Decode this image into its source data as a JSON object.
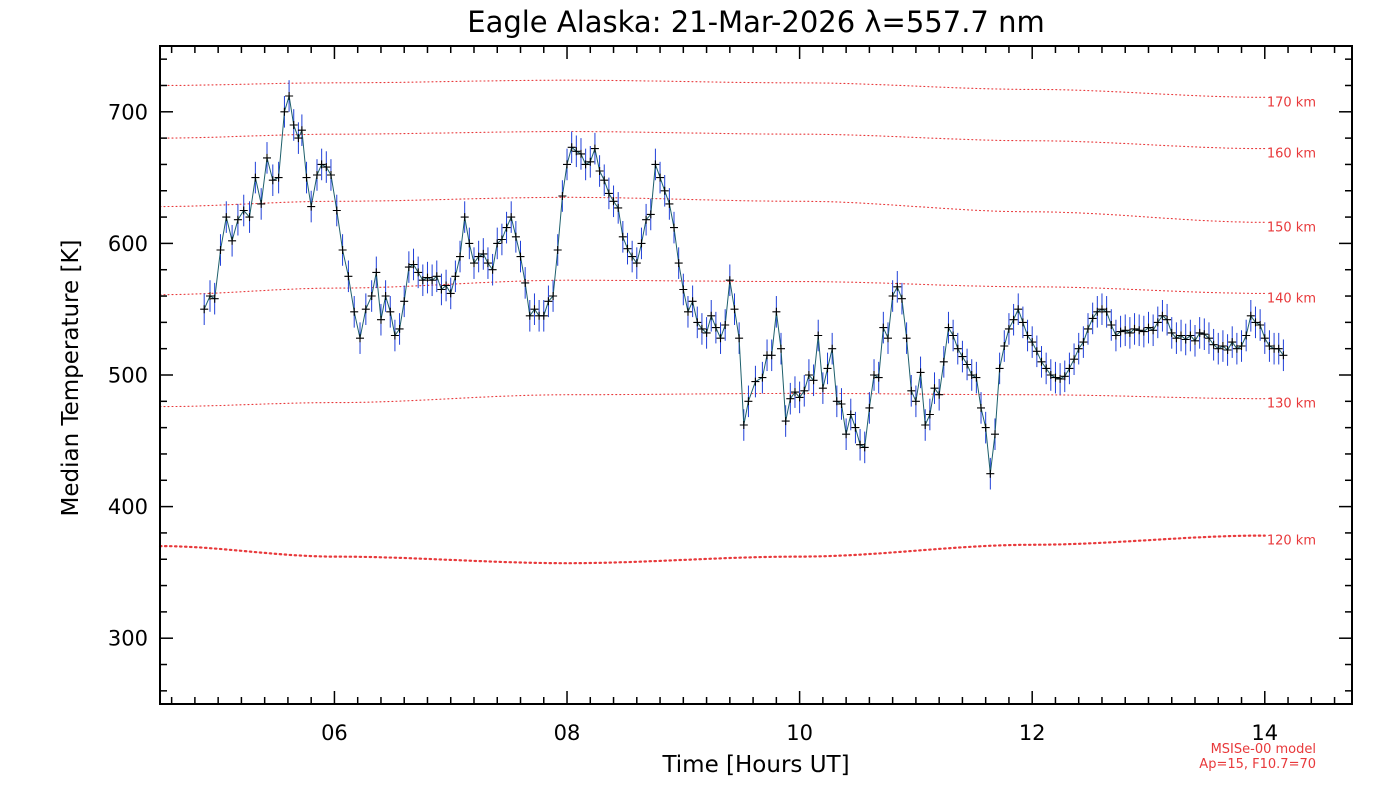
{
  "chart_data": {
    "type": "line",
    "title": "Eagle Alaska: 21-Mar-2026 λ=557.7 nm",
    "xlabel": "Time [Hours UT]",
    "ylabel": "Median Temperature [K]",
    "xlim": [
      4.5,
      14.75
    ],
    "ylim": [
      250,
      750
    ],
    "x_tick_values": [
      6,
      8,
      10,
      12,
      14
    ],
    "x_tick_labels": [
      "06",
      "08",
      "10",
      "12",
      "14"
    ],
    "y_tick_values": [
      300,
      400,
      500,
      600,
      700
    ],
    "y_tick_labels": [
      "300",
      "400",
      "500",
      "600",
      "700"
    ],
    "grid": false,
    "series": [
      {
        "color": "#1f3fd8",
        "marker": "+",
        "error_bar_k": 12,
        "points": [
          [
            4.88,
            550
          ],
          [
            4.93,
            560
          ],
          [
            4.97,
            558
          ],
          [
            5.02,
            595
          ],
          [
            5.07,
            620
          ],
          [
            5.12,
            602
          ],
          [
            5.17,
            618
          ],
          [
            5.22,
            625
          ],
          [
            5.27,
            620
          ],
          [
            5.32,
            650
          ],
          [
            5.37,
            630
          ],
          [
            5.42,
            665
          ],
          [
            5.47,
            648
          ],
          [
            5.52,
            650
          ],
          [
            5.57,
            700
          ],
          [
            5.61,
            712
          ],
          [
            5.65,
            690
          ],
          [
            5.69,
            680
          ],
          [
            5.72,
            686
          ],
          [
            5.76,
            650
          ],
          [
            5.8,
            628
          ],
          [
            5.85,
            652
          ],
          [
            5.89,
            660
          ],
          [
            5.93,
            658
          ],
          [
            5.97,
            652
          ],
          [
            6.02,
            625
          ],
          [
            6.07,
            595
          ],
          [
            6.12,
            575
          ],
          [
            6.17,
            548
          ],
          [
            6.22,
            528
          ],
          [
            6.27,
            550
          ],
          [
            6.32,
            560
          ],
          [
            6.36,
            578
          ],
          [
            6.4,
            542
          ],
          [
            6.44,
            560
          ],
          [
            6.48,
            548
          ],
          [
            6.52,
            530
          ],
          [
            6.56,
            535
          ],
          [
            6.6,
            556
          ],
          [
            6.64,
            582
          ],
          [
            6.68,
            584
          ],
          [
            6.72,
            578
          ],
          [
            6.76,
            572
          ],
          [
            6.8,
            574
          ],
          [
            6.84,
            572
          ],
          [
            6.88,
            575
          ],
          [
            6.92,
            565
          ],
          [
            6.96,
            568
          ],
          [
            7.0,
            562
          ],
          [
            7.04,
            575
          ],
          [
            7.08,
            590
          ],
          [
            7.12,
            620
          ],
          [
            7.16,
            600
          ],
          [
            7.2,
            585
          ],
          [
            7.24,
            590
          ],
          [
            7.28,
            592
          ],
          [
            7.32,
            585
          ],
          [
            7.36,
            580
          ],
          [
            7.4,
            600
          ],
          [
            7.44,
            603
          ],
          [
            7.48,
            612
          ],
          [
            7.52,
            620
          ],
          [
            7.56,
            605
          ],
          [
            7.6,
            590
          ],
          [
            7.64,
            570
          ],
          [
            7.68,
            545
          ],
          [
            7.72,
            550
          ],
          [
            7.76,
            545
          ],
          [
            7.8,
            545
          ],
          [
            7.84,
            556
          ],
          [
            7.88,
            560
          ],
          [
            7.92,
            595
          ],
          [
            7.96,
            636
          ],
          [
            8.0,
            660
          ],
          [
            8.04,
            673
          ],
          [
            8.08,
            670
          ],
          [
            8.12,
            668
          ],
          [
            8.16,
            660
          ],
          [
            8.2,
            662
          ],
          [
            8.24,
            672
          ],
          [
            8.28,
            655
          ],
          [
            8.32,
            648
          ],
          [
            8.36,
            638
          ],
          [
            8.4,
            632
          ],
          [
            8.44,
            627
          ],
          [
            8.48,
            605
          ],
          [
            8.52,
            596
          ],
          [
            8.56,
            590
          ],
          [
            8.6,
            585
          ],
          [
            8.64,
            600
          ],
          [
            8.68,
            618
          ],
          [
            8.72,
            622
          ],
          [
            8.76,
            660
          ],
          [
            8.8,
            650
          ],
          [
            8.84,
            640
          ],
          [
            8.88,
            630
          ],
          [
            8.92,
            612
          ],
          [
            8.96,
            585
          ],
          [
            9.0,
            565
          ],
          [
            9.04,
            548
          ],
          [
            9.08,
            556
          ],
          [
            9.12,
            540
          ],
          [
            9.16,
            535
          ],
          [
            9.2,
            532
          ],
          [
            9.24,
            545
          ],
          [
            9.28,
            536
          ],
          [
            9.32,
            528
          ],
          [
            9.36,
            538
          ],
          [
            9.4,
            572
          ],
          [
            9.44,
            550
          ],
          [
            9.48,
            528
          ],
          [
            9.52,
            462
          ],
          [
            9.56,
            480
          ],
          [
            9.62,
            495
          ],
          [
            9.68,
            498
          ],
          [
            9.72,
            515
          ],
          [
            9.76,
            515
          ],
          [
            9.8,
            548
          ],
          [
            9.84,
            520
          ],
          [
            9.88,
            465
          ],
          [
            9.92,
            482
          ],
          [
            9.96,
            487
          ],
          [
            10.0,
            483
          ],
          [
            10.04,
            488
          ],
          [
            10.08,
            500
          ],
          [
            10.12,
            496
          ],
          [
            10.16,
            530
          ],
          [
            10.2,
            490
          ],
          [
            10.24,
            505
          ],
          [
            10.28,
            520
          ],
          [
            10.32,
            480
          ],
          [
            10.36,
            478
          ],
          [
            10.4,
            455
          ],
          [
            10.44,
            470
          ],
          [
            10.48,
            460
          ],
          [
            10.52,
            447
          ],
          [
            10.56,
            445
          ],
          [
            10.6,
            475
          ],
          [
            10.64,
            500
          ],
          [
            10.68,
            498
          ],
          [
            10.72,
            536
          ],
          [
            10.76,
            528
          ],
          [
            10.8,
            560
          ],
          [
            10.84,
            567
          ],
          [
            10.88,
            558
          ],
          [
            10.92,
            528
          ],
          [
            10.96,
            488
          ],
          [
            11.0,
            480
          ],
          [
            11.04,
            502
          ],
          [
            11.08,
            462
          ],
          [
            11.12,
            470
          ],
          [
            11.16,
            490
          ],
          [
            11.2,
            485
          ],
          [
            11.24,
            510
          ],
          [
            11.28,
            536
          ],
          [
            11.32,
            530
          ],
          [
            11.36,
            520
          ],
          [
            11.4,
            514
          ],
          [
            11.44,
            508
          ],
          [
            11.48,
            500
          ],
          [
            11.52,
            498
          ],
          [
            11.56,
            475
          ],
          [
            11.6,
            460
          ],
          [
            11.64,
            425
          ],
          [
            11.68,
            455
          ],
          [
            11.72,
            505
          ],
          [
            11.76,
            522
          ],
          [
            11.8,
            535
          ],
          [
            11.84,
            542
          ],
          [
            11.88,
            550
          ],
          [
            11.92,
            540
          ],
          [
            11.96,
            530
          ],
          [
            12.0,
            525
          ],
          [
            12.04,
            518
          ],
          [
            12.08,
            510
          ],
          [
            12.12,
            505
          ],
          [
            12.16,
            500
          ],
          [
            12.2,
            498
          ],
          [
            12.24,
            497
          ],
          [
            12.28,
            499
          ],
          [
            12.32,
            505
          ],
          [
            12.36,
            512
          ],
          [
            12.4,
            520
          ],
          [
            12.44,
            525
          ],
          [
            12.48,
            535
          ],
          [
            12.52,
            543
          ],
          [
            12.56,
            548
          ],
          [
            12.6,
            550
          ],
          [
            12.64,
            548
          ],
          [
            12.68,
            538
          ],
          [
            12.72,
            530
          ],
          [
            12.76,
            533
          ],
          [
            12.8,
            534
          ],
          [
            12.84,
            532
          ],
          [
            12.88,
            535
          ],
          [
            12.92,
            534
          ],
          [
            12.96,
            533
          ],
          [
            13.0,
            536
          ],
          [
            13.04,
            534
          ],
          [
            13.08,
            540
          ],
          [
            13.12,
            545
          ],
          [
            13.16,
            542
          ],
          [
            13.2,
            532
          ],
          [
            13.24,
            528
          ],
          [
            13.28,
            530
          ],
          [
            13.32,
            527
          ],
          [
            13.36,
            530
          ],
          [
            13.4,
            526
          ],
          [
            13.44,
            532
          ],
          [
            13.48,
            531
          ],
          [
            13.52,
            528
          ],
          [
            13.56,
            523
          ],
          [
            13.6,
            520
          ],
          [
            13.64,
            522
          ],
          [
            13.68,
            519
          ],
          [
            13.72,
            525
          ],
          [
            13.76,
            520
          ],
          [
            13.8,
            522
          ],
          [
            13.84,
            530
          ],
          [
            13.88,
            545
          ],
          [
            13.92,
            540
          ],
          [
            13.96,
            538
          ],
          [
            14.0,
            528
          ],
          [
            14.04,
            522
          ],
          [
            14.08,
            520
          ],
          [
            14.12,
            520
          ],
          [
            14.16,
            515
          ]
        ]
      }
    ],
    "model_curves": {
      "color": "#e8393b",
      "curves": [
        {
          "label": "170 km",
          "x": [
            4.5,
            6,
            8,
            10,
            12,
            14
          ],
          "y": [
            720,
            722,
            724,
            722,
            717,
            711
          ]
        },
        {
          "label": "160 km",
          "x": [
            4.5,
            6,
            8,
            10,
            12,
            14
          ],
          "y": [
            680,
            683,
            685,
            683,
            678,
            672
          ]
        },
        {
          "label": "150 km",
          "x": [
            4.5,
            6,
            8,
            10,
            12,
            14
          ],
          "y": [
            628,
            632,
            635,
            632,
            624,
            616
          ]
        },
        {
          "label": "140 km",
          "x": [
            4.5,
            6,
            8,
            10,
            12,
            14
          ],
          "y": [
            561,
            566,
            572,
            571,
            567,
            562
          ]
        },
        {
          "label": "130 km",
          "x": [
            4.5,
            6,
            8,
            10,
            12,
            14
          ],
          "y": [
            476,
            479,
            485,
            486,
            485,
            482
          ]
        },
        {
          "label": "120 km",
          "x": [
            4.5,
            6,
            8,
            10,
            12,
            14
          ],
          "y": [
            370,
            362,
            357,
            362,
            371,
            378
          ]
        }
      ]
    },
    "model_note": [
      "MSISe-00 model",
      "Ap=15, F10.7=70"
    ]
  }
}
